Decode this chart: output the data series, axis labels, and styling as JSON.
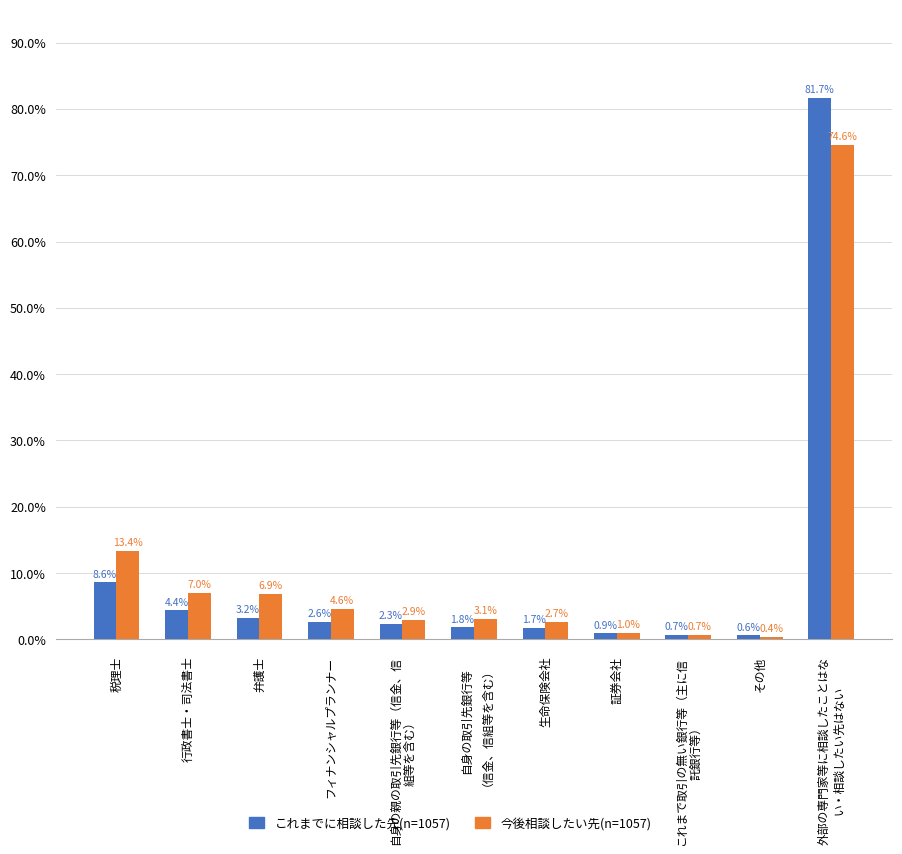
{
  "blue_values": [
    8.6,
    4.4,
    3.2,
    2.6,
    2.3,
    1.8,
    1.7,
    0.9,
    0.7,
    0.6,
    81.7
  ],
  "orange_values": [
    13.4,
    7.0,
    6.9,
    4.6,
    2.9,
    3.1,
    2.7,
    1.0,
    0.7,
    0.4,
    74.6
  ],
  "blue_color": "#4472C4",
  "orange_color": "#ED7D31",
  "blue_label": "これまでに相談した先(n=1057)",
  "orange_label": "今後相談したい先(n=1057)",
  "x_labels": [
    "税理士",
    "行政書士・司法書士",
    "弁護士",
    "フィナンシャルプランナー",
    "自身の親の取引先銀行等（信金、信\n組等を含む）",
    "自身の取引先銀行等\n（信金、信組等を含む）",
    "生命保険会社",
    "証券会社",
    "これまで取引の無い銀行等（主に信\n託銀行等）",
    "その他",
    "外部の専門家等に相談したことはな\nい・相談したい先はない"
  ],
  "ylim": [
    0,
    95
  ],
  "yticks": [
    0,
    10,
    20,
    30,
    40,
    50,
    60,
    70,
    80,
    90
  ],
  "ytick_labels": [
    "0.0%",
    "10.0%",
    "20.0%",
    "30.0%",
    "40.0%",
    "50.0%",
    "60.0%",
    "70.0%",
    "80.0%",
    "90.0%"
  ],
  "bar_width": 0.32,
  "background_color": "#FFFFFF",
  "grid_color": "#CCCCCC",
  "spine_color": "#AAAAAA"
}
